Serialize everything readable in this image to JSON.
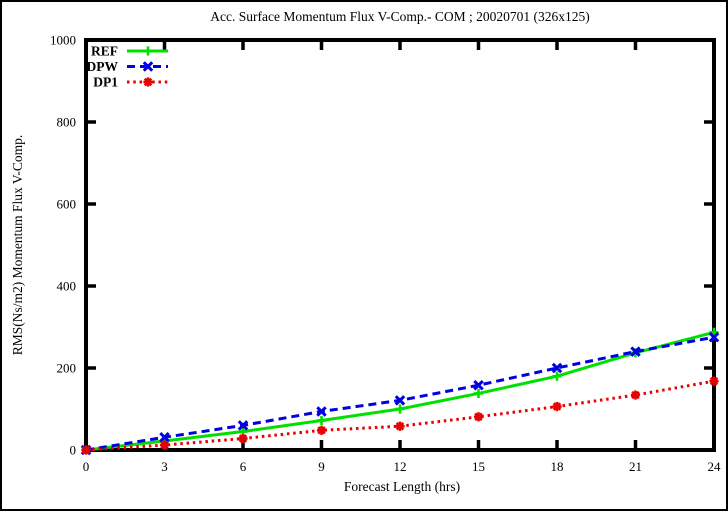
{
  "chart_data": {
    "type": "line",
    "title": "Acc. Surface Momentum Flux V-Comp.- COM ; 20020701 (326x125)",
    "xlabel": "Forecast Length (hrs)",
    "ylabel": "RMS(Ns/m2) Momentum Flux V-Comp.",
    "xlim": [
      0,
      24
    ],
    "ylim": [
      0,
      1000
    ],
    "xticks": [
      0,
      3,
      6,
      9,
      12,
      15,
      18,
      21,
      24
    ],
    "yticks": [
      0,
      200,
      400,
      600,
      800,
      1000
    ],
    "x": [
      0,
      3,
      6,
      9,
      12,
      15,
      18,
      21,
      24
    ],
    "series": [
      {
        "name": "REF",
        "color": "#00e000",
        "line_style": "solid",
        "marker": "plus",
        "values": [
          0,
          22,
          45,
          72,
          100,
          138,
          180,
          237,
          287
        ]
      },
      {
        "name": "DPW",
        "color": "#0000e0",
        "line_style": "dashed",
        "marker": "x",
        "values": [
          0,
          31,
          60,
          94,
          121,
          158,
          200,
          240,
          275
        ]
      },
      {
        "name": "DP1",
        "color": "#e80000",
        "line_style": "dotted",
        "marker": "asterisk",
        "values": [
          0,
          12,
          28,
          48,
          58,
          81,
          106,
          134,
          168
        ]
      }
    ],
    "grid": false,
    "legend_position": "top-left",
    "axis_color": "#000000",
    "background": "#ffffff"
  }
}
